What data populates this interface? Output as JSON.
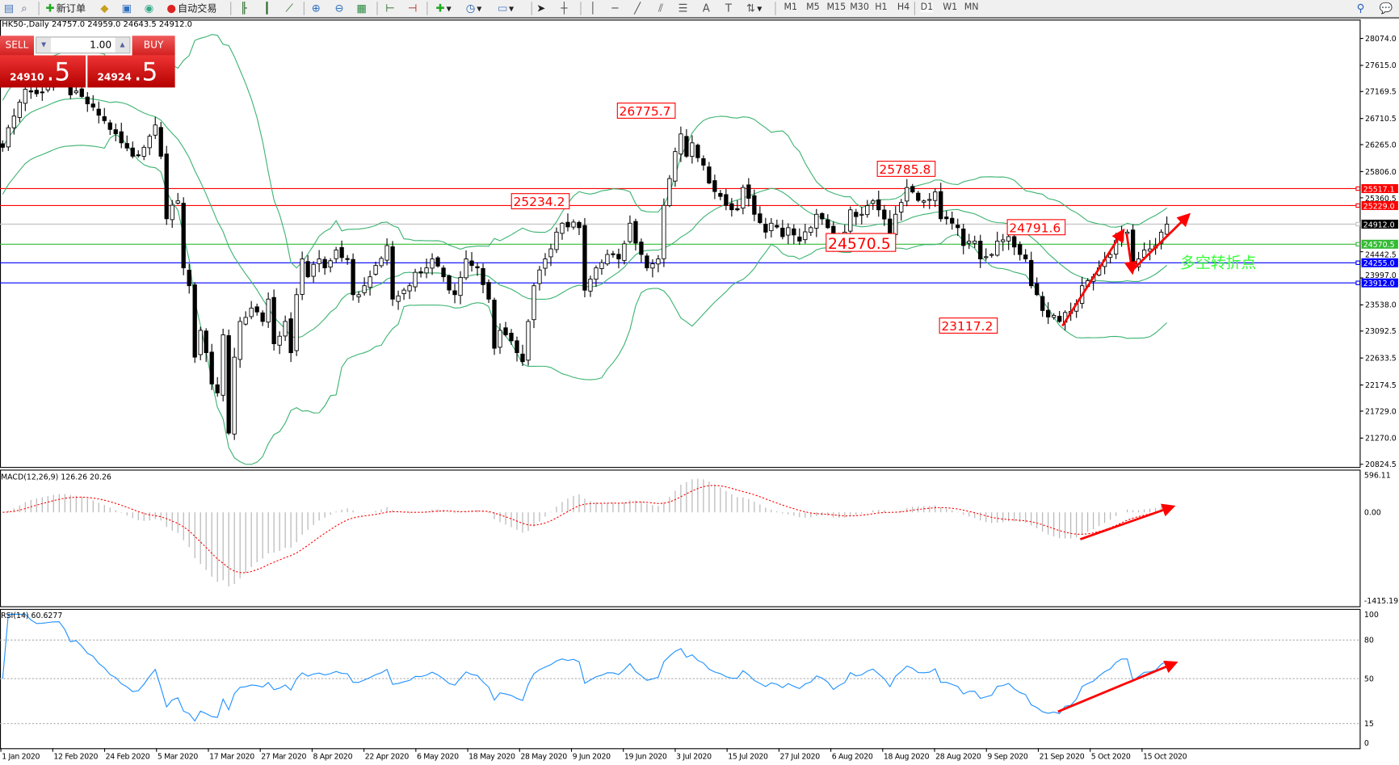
{
  "toolbar": {
    "new_order_label": "新订单",
    "auto_trading_label": "自动交易",
    "timeframes": [
      "M1",
      "M5",
      "M15",
      "M30",
      "H1",
      "H4",
      "D1",
      "W1",
      "MN"
    ],
    "active_timeframe": "D1"
  },
  "chart": {
    "info_line": "HK50-,Daily  24757.0 24959.0 24643.5 24912.0",
    "symbol": "HK50-",
    "period": "Daily",
    "ohlc": {
      "open": 24757.0,
      "high": 24959.0,
      "low": 24643.5,
      "close": 24912.0
    }
  },
  "trade_panel": {
    "sell_label": "SELL",
    "buy_label": "BUY",
    "lot": "1.00",
    "sell_price_main": "24910",
    "sell_price_big": ".5",
    "buy_price_main": "24924",
    "buy_price_big": ".5"
  },
  "price_axis": [
    "28074.0",
    "27615.0",
    "27169.5",
    "26710.5",
    "26265.0",
    "25806.0",
    "25360.5",
    "24442.5",
    "23997.0",
    "23538.0",
    "23092.5",
    "22633.5",
    "22174.5",
    "21729.0",
    "21270.0",
    "20824.5"
  ],
  "price_range": [
    20824.5,
    28074.0
  ],
  "horizontal_lines": [
    {
      "price": 25517.1,
      "label": "25517.1",
      "color": "#ff0000"
    },
    {
      "price": 25229.0,
      "label": "25229.0",
      "color": "#ff0000"
    },
    {
      "price": 24912.0,
      "label": "24912.0",
      "color": "#000000",
      "line_color": "#c0c0c0"
    },
    {
      "price": 24570.5,
      "label": "24570.5",
      "color": "#33bb33"
    },
    {
      "price": 24255.0,
      "label": "24255.0",
      "color": "#0000ff"
    },
    {
      "price": 23912.0,
      "label": "23912.0",
      "color": "#0000ff"
    }
  ],
  "annotations": [
    {
      "text": "26775.7",
      "bar": 119,
      "price": 26775.7,
      "size": "normal"
    },
    {
      "text": "25234.2",
      "bar": 99,
      "price": 25234.2,
      "size": "normal"
    },
    {
      "text": "25785.8",
      "bar": 165,
      "price": 25785.8,
      "size": "normal"
    },
    {
      "text": "24570.5",
      "bar": 158,
      "price": 24570.5,
      "size": "large"
    },
    {
      "text": "24791.6",
      "bar": 188,
      "price": 24791.6,
      "size": "normal"
    },
    {
      "text": "23117.2",
      "bar": 176,
      "price": 23117.2,
      "size": "normal"
    }
  ],
  "note_text": "多空转折点",
  "note_color": "#33ff33",
  "arrow_color": "#ff0000",
  "band_color": "#3cb371",
  "macd": {
    "label": "MACD(12,26,9) 126.26 20.26",
    "axis": [
      "596.11",
      "0.00",
      "-1415.19"
    ],
    "range": [
      -1415.19,
      596.11
    ],
    "signal_color": "#ff0000",
    "hist_color": "#b0b0b0"
  },
  "rsi": {
    "label": "RSI(14) 60.6277",
    "axis": [
      "100",
      "80",
      "50",
      "15",
      "0"
    ],
    "levels": [
      80,
      50,
      15
    ],
    "line_color": "#1e90ff"
  },
  "dates": [
    "1 Jan 2020",
    "12 Feb 2020",
    "24 Feb 2020",
    "5 Mar 2020",
    "17 Mar 2020",
    "27 Mar 2020",
    "8 Apr 2020",
    "22 Apr 2020",
    "6 May 2020",
    "18 May 2020",
    "28 May 2020",
    "9 Jun 2020",
    "19 Jun 2020",
    "3 Jul 2020",
    "15 Jul 2020",
    "27 Jul 2020",
    "6 Aug 2020",
    "18 Aug 2020",
    "28 Aug 2020",
    "9 Sep 2020",
    "21 Sep 2020",
    "5 Oct 2020",
    "15 Oct 2020"
  ],
  "chart_data": {
    "type": "candlestick",
    "close_keypoints": [
      [
        0,
        26220
      ],
      [
        2,
        26752
      ],
      [
        4,
        27208
      ],
      [
        6,
        27132
      ],
      [
        9,
        27360
      ],
      [
        16,
        26904
      ],
      [
        19,
        26524
      ],
      [
        21,
        26296
      ],
      [
        23,
        26068
      ],
      [
        25,
        26220
      ],
      [
        27,
        26600
      ],
      [
        28,
        26068
      ],
      [
        29,
        25004
      ],
      [
        31,
        25308
      ],
      [
        32,
        24168
      ],
      [
        33,
        23864
      ],
      [
        34,
        22648
      ],
      [
        35,
        23104
      ],
      [
        36,
        22724
      ],
      [
        37,
        22192
      ],
      [
        38,
        22040
      ],
      [
        39,
        23028
      ],
      [
        40,
        21356
      ],
      [
        41,
        22648
      ],
      [
        42,
        23256
      ],
      [
        44,
        23484
      ],
      [
        46,
        23256
      ],
      [
        47,
        23636
      ],
      [
        48,
        22876
      ],
      [
        50,
        23256
      ],
      [
        51,
        22724
      ],
      [
        52,
        23712
      ],
      [
        53,
        24320
      ],
      [
        54,
        24016
      ],
      [
        56,
        24320
      ],
      [
        57,
        24168
      ],
      [
        59,
        24472
      ],
      [
        61,
        24320
      ],
      [
        62,
        23712
      ],
      [
        64,
        23864
      ],
      [
        65,
        24016
      ],
      [
        68,
        24548
      ],
      [
        69,
        23636
      ],
      [
        72,
        23864
      ],
      [
        73,
        24092
      ],
      [
        75,
        24168
      ],
      [
        76,
        24320
      ],
      [
        78,
        24016
      ],
      [
        80,
        23712
      ],
      [
        82,
        24320
      ],
      [
        84,
        24168
      ],
      [
        86,
        23636
      ],
      [
        87,
        22800
      ],
      [
        88,
        23104
      ],
      [
        89,
        23028
      ],
      [
        91,
        22724
      ],
      [
        92,
        22572
      ],
      [
        93,
        23256
      ],
      [
        94,
        23864
      ],
      [
        96,
        24320
      ],
      [
        98,
        24776
      ],
      [
        99,
        24928
      ],
      [
        102,
        24852
      ],
      [
        103,
        23788
      ],
      [
        105,
        24168
      ],
      [
        107,
        24396
      ],
      [
        109,
        24320
      ],
      [
        111,
        24928
      ],
      [
        113,
        24396
      ],
      [
        114,
        24168
      ],
      [
        116,
        24320
      ],
      [
        117,
        25232
      ],
      [
        118,
        25688
      ],
      [
        120,
        26448
      ],
      [
        121,
        26068
      ],
      [
        122,
        26296
      ],
      [
        124,
        25916
      ],
      [
        125,
        25612
      ],
      [
        127,
        25384
      ],
      [
        128,
        25232
      ],
      [
        130,
        25156
      ],
      [
        131,
        25536
      ],
      [
        133,
        25080
      ],
      [
        135,
        24776
      ],
      [
        136,
        24928
      ],
      [
        138,
        24700
      ],
      [
        139,
        24852
      ],
      [
        141,
        24624
      ],
      [
        143,
        24852
      ],
      [
        144,
        25080
      ],
      [
        146,
        24852
      ],
      [
        147,
        24548
      ],
      [
        149,
        24776
      ],
      [
        150,
        25156
      ],
      [
        152,
        25080
      ],
      [
        154,
        25308
      ],
      [
        155,
        25156
      ],
      [
        157,
        24700
      ],
      [
        158,
        25080
      ],
      [
        160,
        25536
      ],
      [
        161,
        25460
      ],
      [
        163,
        25308
      ],
      [
        165,
        25460
      ],
      [
        166,
        25004
      ],
      [
        167,
        25004
      ],
      [
        169,
        24852
      ],
      [
        170,
        24548
      ],
      [
        172,
        24624
      ],
      [
        173,
        24320
      ],
      [
        175,
        24396
      ],
      [
        176,
        24624
      ],
      [
        178,
        24700
      ],
      [
        180,
        24396
      ],
      [
        181,
        24320
      ],
      [
        182,
        23864
      ],
      [
        183,
        23712
      ],
      [
        185,
        23332
      ],
      [
        187,
        23256
      ],
      [
        188,
        23408
      ],
      [
        190,
        23560
      ],
      [
        191,
        23864
      ],
      [
        193,
        24016
      ],
      [
        194,
        24168
      ],
      [
        196,
        24396
      ],
      [
        198,
        24776
      ],
      [
        199,
        24776
      ],
      [
        200,
        24168
      ],
      [
        201,
        24320
      ],
      [
        202,
        24472
      ],
      [
        204,
        24548
      ],
      [
        205,
        24776
      ],
      [
        206,
        24912
      ]
    ],
    "indicators": [
      "Bollinger Bands",
      "MACD(12,26,9)",
      "RSI(14)"
    ]
  }
}
